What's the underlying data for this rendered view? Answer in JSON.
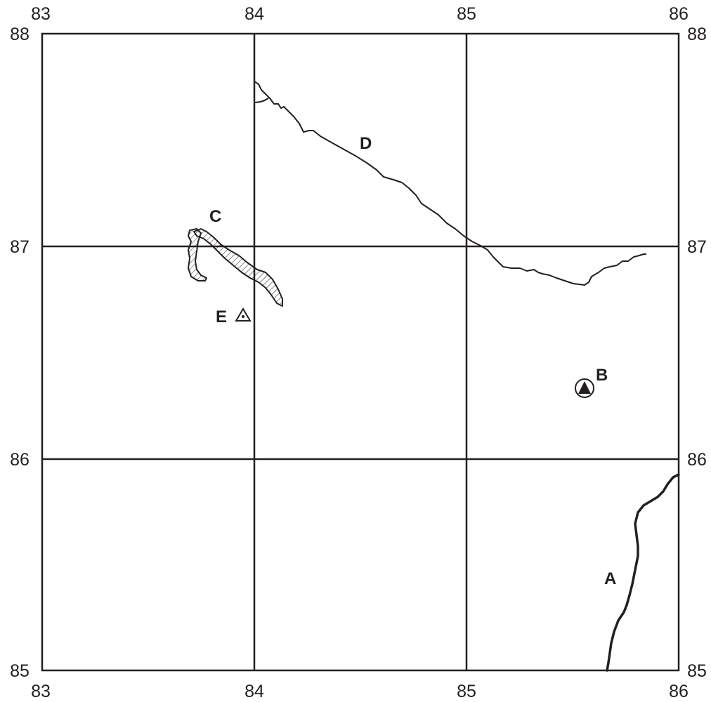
{
  "map": {
    "easting_labels": [
      "83",
      "84",
      "85",
      "86"
    ],
    "northing_labels": [
      "88",
      "87",
      "86",
      "85"
    ],
    "features": {
      "A": {
        "label": "A",
        "kind": "river (thick line)"
      },
      "B": {
        "label": "B",
        "kind": "triangle in circle symbol"
      },
      "C": {
        "label": "C",
        "kind": "hatched lake"
      },
      "D": {
        "label": "D",
        "kind": "coastline / thin line"
      },
      "E": {
        "label": "E",
        "kind": "small triangle symbol"
      }
    },
    "colors": {
      "ink": "#231f20",
      "background": "#ffffff"
    }
  }
}
